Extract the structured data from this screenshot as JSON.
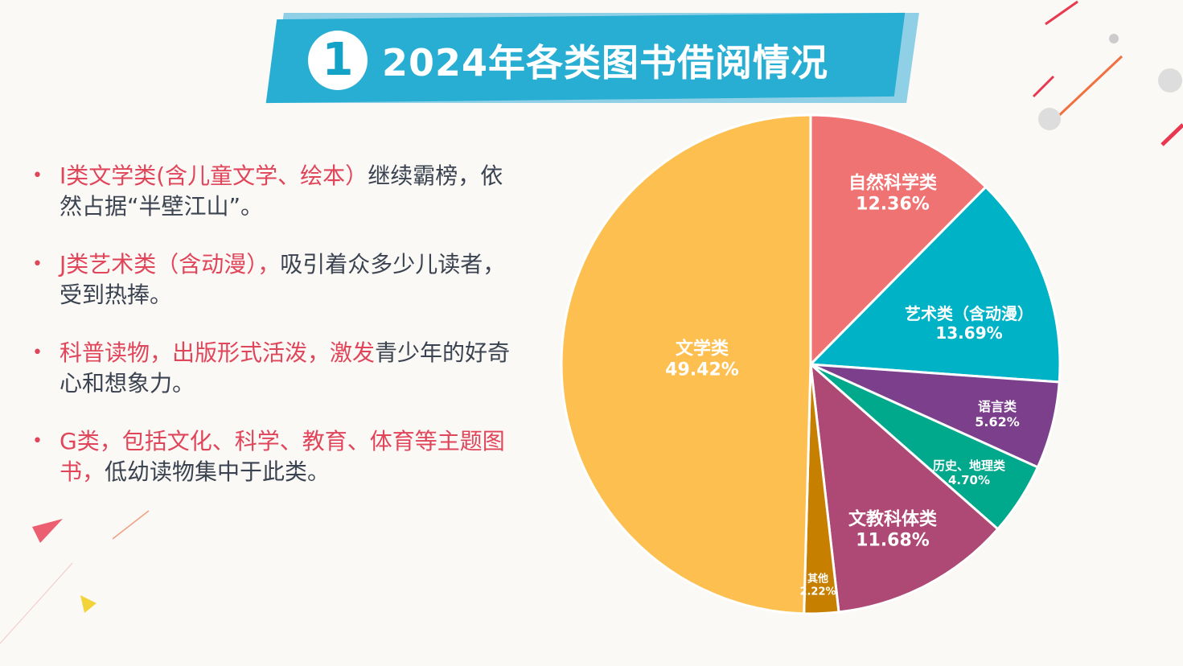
{
  "header": {
    "number": "1",
    "title": "2024年各类图书借阅情况",
    "banner_color": "#29aed3"
  },
  "bullets": [
    {
      "highlight": "I类文学类(含儿童文学、绘本）",
      "text": "继续霸榜，依然占据“半壁江山”。"
    },
    {
      "highlight": "J类艺术类（含动漫），",
      "text": "吸引着众多少儿读者，受到热捧。"
    },
    {
      "highlight": "科普读物，出版形式活泼，激发",
      "text": "青少年的好奇心和想象力。"
    },
    {
      "highlight": "G类，包括文化、科学、教育、体育等主题图书，",
      "text": "低幼读物集中于此类。"
    }
  ],
  "chart_data": {
    "type": "pie",
    "start": "12 o'clock, clockwise",
    "slices": [
      {
        "name": "自然科学类",
        "value": 12.36,
        "label": "12.36%",
        "color": "#f07373"
      },
      {
        "name": "艺术类（含动漫）",
        "value": 13.69,
        "label": "13.69%",
        "color": "#00b2c6"
      },
      {
        "name": "语言类",
        "value": 5.62,
        "label": "5.62%",
        "color": "#7b3f8c"
      },
      {
        "name": "历史、地理类",
        "value": 4.7,
        "label": "4.70%",
        "color": "#00a88c"
      },
      {
        "name": "文教科体类",
        "value": 11.68,
        "label": "11.68%",
        "color": "#ad4974"
      },
      {
        "name": "其他",
        "value": 2.22,
        "label": "2.22%",
        "color": "#c77f00"
      },
      {
        "name": "文学类",
        "value": 49.42,
        "label": "49.42%",
        "color": "#fdbf50"
      }
    ]
  }
}
